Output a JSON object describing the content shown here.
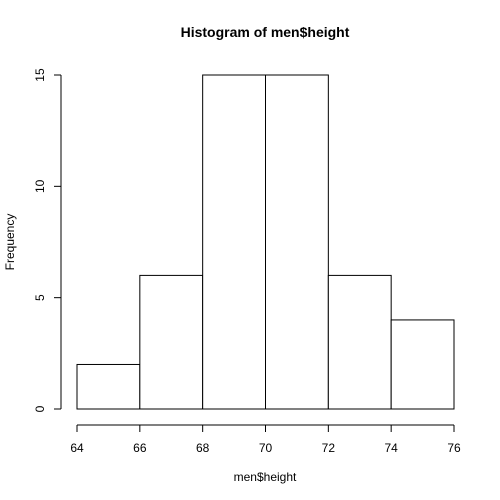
{
  "chart_data": {
    "type": "bar",
    "title": "Histogram of men$height",
    "xlabel": "men$height",
    "ylabel": "Frequency",
    "bins": [
      {
        "start": 64,
        "end": 66,
        "count": 2
      },
      {
        "start": 66,
        "end": 68,
        "count": 6
      },
      {
        "start": 68,
        "end": 70,
        "count": 15
      },
      {
        "start": 70,
        "end": 72,
        "count": 15
      },
      {
        "start": 72,
        "end": 74,
        "count": 6
      },
      {
        "start": 74,
        "end": 76,
        "count": 4
      }
    ],
    "xlim": [
      64,
      76
    ],
    "ylim": [
      0,
      15
    ],
    "x_ticks": [
      64,
      66,
      68,
      70,
      72,
      74,
      76
    ],
    "y_ticks": [
      0,
      5,
      10,
      15
    ],
    "grid": false,
    "legend": "none",
    "colors": {
      "bar_fill": "#ffffff",
      "bar_stroke": "#000000"
    }
  }
}
